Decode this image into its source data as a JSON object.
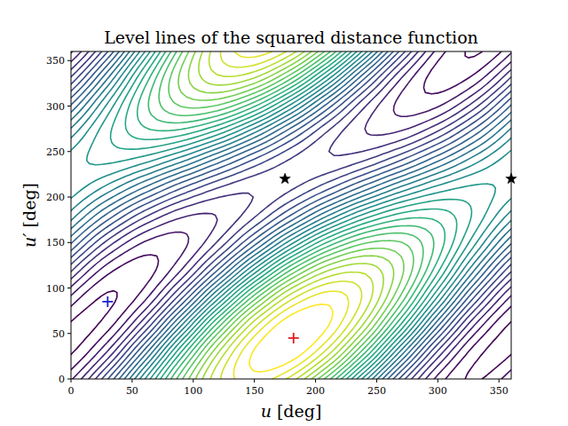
{
  "chart_data": {
    "type": "contour",
    "title": "Level lines of the squared distance function",
    "x_label": "u [deg]",
    "y_label": "u′ [deg]",
    "x": [
      0,
      30,
      60,
      90,
      120,
      150,
      180,
      210,
      240,
      270,
      300,
      330,
      360
    ],
    "y": [
      0,
      30,
      60,
      90,
      120,
      150,
      180,
      210,
      240,
      270,
      300,
      330,
      360
    ],
    "z": [
      [
        2.46,
        3.74,
        5.47,
        7.19,
        8.44,
        8.88,
        8.39,
        7.11,
        5.38,
        3.66,
        2.41,
        1.97,
        2.46
      ],
      [
        1.97,
        2.77,
        4.33,
        6.23,
        7.95,
        9.03,
        9.2,
        8.39,
        6.83,
        4.93,
        3.21,
        2.13,
        1.97
      ],
      [
        1.97,
        2.13,
        3.21,
        4.93,
        6.83,
        8.39,
        9.2,
        9.03,
        7.95,
        6.23,
        4.33,
        2.77,
        1.97
      ],
      [
        2.46,
        1.97,
        2.41,
        3.66,
        5.38,
        7.11,
        8.39,
        8.88,
        8.44,
        7.19,
        5.47,
        3.74,
        2.46
      ],
      [
        3.31,
        2.35,
        2.14,
        2.74,
        3.99,
        5.55,
        7.0,
        7.96,
        8.17,
        7.57,
        6.32,
        4.76,
        3.31
      ],
      [
        4.29,
        3.16,
        2.48,
        2.43,
        3.03,
        4.12,
        5.4,
        6.53,
        7.21,
        7.26,
        6.66,
        5.57,
        4.29
      ],
      [
        5.14,
        4.18,
        3.33,
        2.81,
        2.76,
        3.2,
        4.01,
        4.97,
        5.82,
        6.34,
        6.39,
        5.95,
        5.14
      ],
      [
        5.64,
        5.15,
        4.47,
        3.77,
        3.25,
        3.04,
        3.21,
        3.69,
        4.37,
        5.07,
        5.59,
        5.8,
        5.64
      ],
      [
        5.64,
        5.8,
        5.59,
        5.07,
        4.37,
        3.69,
        3.21,
        3.04,
        3.25,
        3.77,
        4.47,
        5.15,
        5.64
      ],
      [
        5.14,
        5.95,
        6.39,
        6.34,
        5.82,
        4.97,
        4.01,
        3.2,
        2.76,
        2.81,
        3.33,
        4.18,
        5.14
      ],
      [
        4.29,
        5.57,
        6.66,
        7.26,
        7.21,
        6.53,
        5.4,
        4.12,
        3.03,
        2.43,
        2.48,
        3.16,
        4.29
      ],
      [
        3.31,
        4.76,
        6.32,
        7.57,
        8.17,
        7.96,
        7.0,
        5.55,
        3.99,
        2.74,
        2.14,
        2.35,
        3.31
      ],
      [
        2.46,
        3.74,
        5.47,
        7.19,
        8.44,
        8.88,
        8.39,
        7.11,
        5.38,
        3.66,
        2.41,
        1.97,
        2.46
      ]
    ],
    "levels": [
      2,
      2.25,
      2.5,
      2.75,
      3,
      3.25,
      3.5,
      3.75,
      4,
      4.25,
      4.5,
      4.75,
      5,
      5.25,
      5.5,
      5.75,
      6,
      6.25,
      6.5,
      6.75,
      7,
      7.25,
      7.5,
      7.75,
      8,
      8.25,
      8.5,
      8.75,
      9
    ],
    "xlim": [
      0,
      360
    ],
    "ylim": [
      0,
      360
    ],
    "xticks": [
      0,
      50,
      100,
      150,
      200,
      250,
      300,
      350
    ],
    "yticks": [
      0,
      50,
      100,
      150,
      200,
      250,
      300,
      350
    ],
    "series": [
      {
        "type": "scatter",
        "color": "#e41a1c",
        "marker": "plus",
        "x": [
          182
        ],
        "values": [
          45
        ]
      },
      {
        "type": "scatter",
        "color": "#1f1fd0",
        "marker": "plus",
        "x": [
          30
        ],
        "values": [
          85
        ]
      },
      {
        "type": "scatter",
        "color": "#000000",
        "marker": "star",
        "x": [
          175,
          360
        ],
        "values": [
          220,
          220
        ]
      }
    ]
  }
}
